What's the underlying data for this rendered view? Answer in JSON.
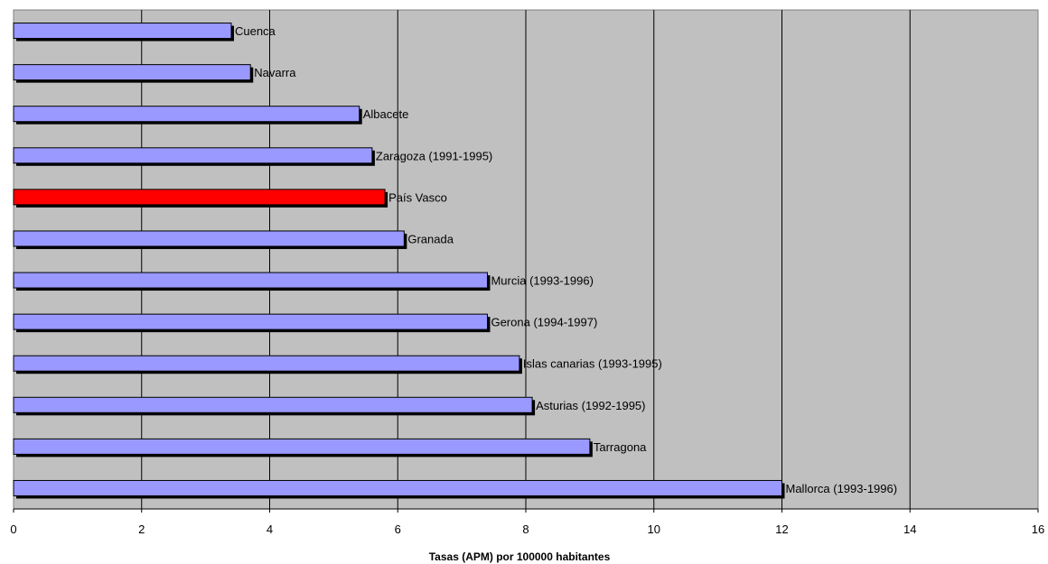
{
  "chart_data": {
    "type": "bar",
    "orientation": "horizontal",
    "title": "",
    "xlabel": "Tasas (APM) por 100000 habitantes",
    "ylabel": "",
    "xlim": [
      0,
      16
    ],
    "xticks": [
      0,
      2,
      4,
      6,
      8,
      10,
      12,
      14,
      16
    ],
    "grid": true,
    "legend": "none",
    "categories": [
      "Cuenca",
      "Navarra",
      "Albacete",
      "Zaragoza (1991-1995)",
      "País Vasco",
      "Granada",
      "Murcia (1993-1996)",
      "Gerona (1994-1997)",
      "Islas canarias (1993-1995)",
      "Asturias (1992-1995)",
      "Tarragona",
      "Mallorca (1993-1996)"
    ],
    "values": [
      3.4,
      3.7,
      5.4,
      5.6,
      5.8,
      6.1,
      7.4,
      7.4,
      7.9,
      8.1,
      9.0,
      12.0
    ],
    "highlight_index": 4,
    "colors": {
      "bar": "#9999ff",
      "highlight": "#ff0000",
      "plot_background": "#c0c0c0",
      "shadow": "#000000",
      "grid": "#000000"
    }
  }
}
